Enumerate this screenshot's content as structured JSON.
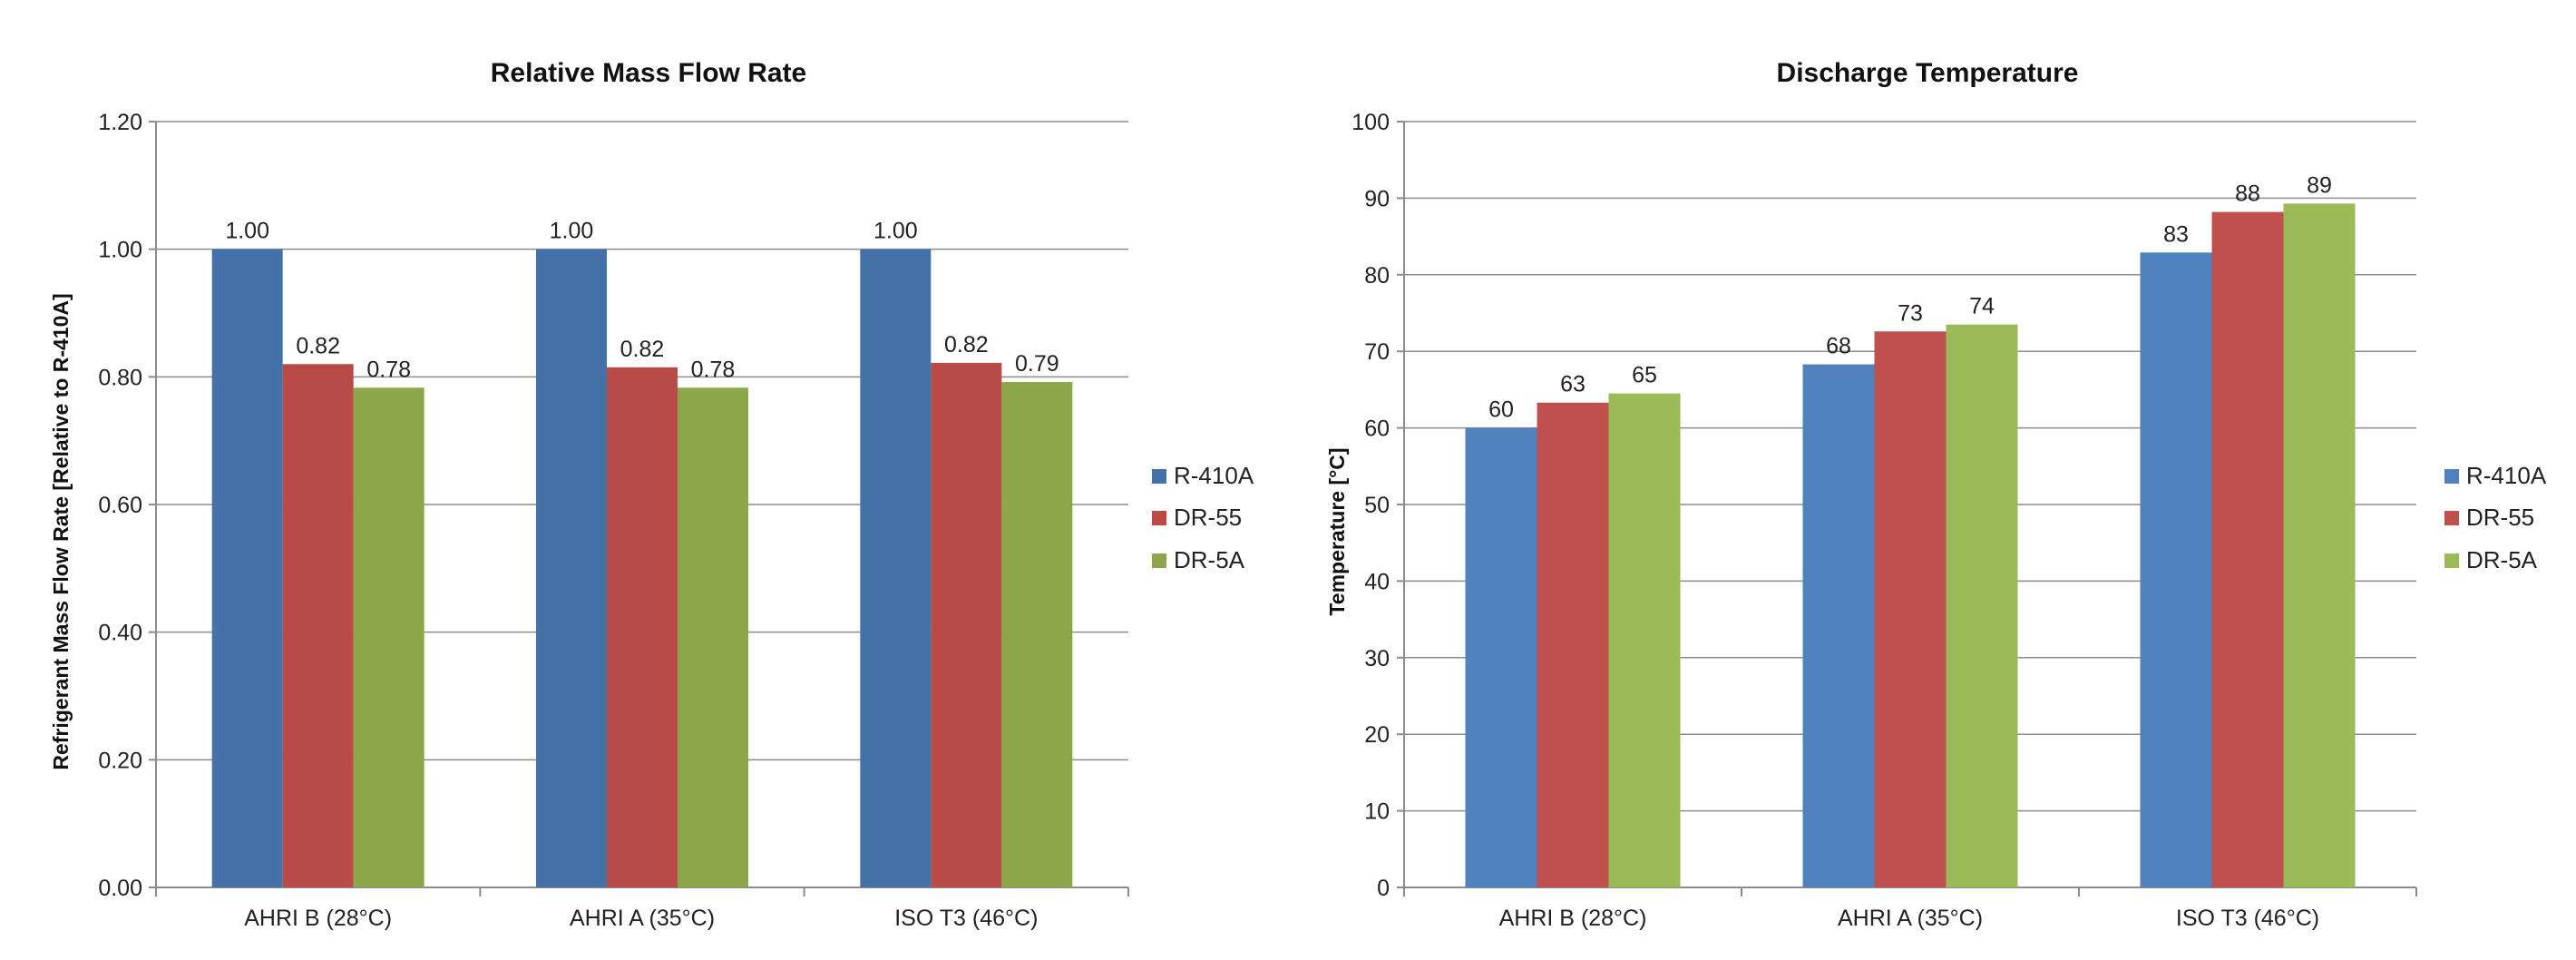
{
  "chart_data": [
    {
      "type": "bar",
      "title": "Relative Mass Flow Rate",
      "xlabel": "",
      "ylabel": "Refrigerant Mass Flow Rate [Relative to R-410A]",
      "ylim": [
        0,
        1.2
      ],
      "yticks": [
        "0.00",
        "0.20",
        "0.40",
        "0.60",
        "0.80",
        "1.00",
        "1.20"
      ],
      "grid": true,
      "legend_position": "right",
      "categories": [
        "AHRI B (28°C)",
        "AHRI A (35°C)",
        "ISO T3 (46°C)"
      ],
      "series": [
        {
          "name": "R-410A",
          "values": [
            1.0,
            1.0,
            1.0
          ],
          "labels": [
            "1.00",
            "1.00",
            "1.00"
          ],
          "color": "#4472a8"
        },
        {
          "name": "DR-55",
          "values": [
            0.82,
            0.815,
            0.822
          ],
          "labels": [
            "0.82",
            "0.82",
            "0.82"
          ],
          "color": "#b84a47"
        },
        {
          "name": "DR-5A",
          "values": [
            0.783,
            0.783,
            0.792
          ],
          "labels": [
            "0.78",
            "0.78",
            "0.79"
          ],
          "color": "#8ba74a"
        }
      ]
    },
    {
      "type": "bar",
      "title": "Discharge Temperature",
      "xlabel": "",
      "ylabel": "Temperature [°C]",
      "ylim": [
        0,
        100
      ],
      "yticks": [
        "0",
        "10",
        "20",
        "30",
        "40",
        "50",
        "60",
        "70",
        "80",
        "90",
        "100"
      ],
      "grid": true,
      "legend_position": "right",
      "categories": [
        "AHRI B (28°C)",
        "AHRI A (35°C)",
        "ISO T3 (46°C)"
      ],
      "series": [
        {
          "name": "R-410A",
          "values": [
            60,
            68.3,
            82.9
          ],
          "labels": [
            "60",
            "68",
            "83"
          ],
          "color": "#4f81bd"
        },
        {
          "name": "DR-55",
          "values": [
            63.3,
            72.6,
            88.2
          ],
          "labels": [
            "63",
            "73",
            "88"
          ],
          "color": "#c0504d"
        },
        {
          "name": "DR-5A",
          "values": [
            64.5,
            73.5,
            89.3
          ],
          "labels": [
            "65",
            "74",
            "89"
          ],
          "color": "#9bbb59"
        }
      ]
    }
  ]
}
